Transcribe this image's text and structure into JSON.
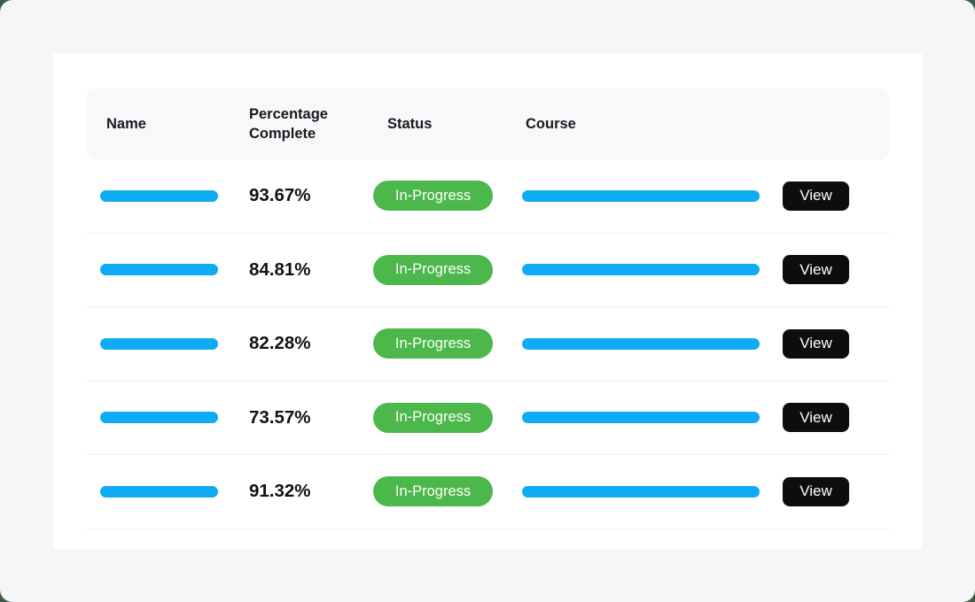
{
  "colors": {
    "backdrop": "#3E5B46",
    "page_bg": "#F5F6F8",
    "card_bg": "#FFFFFF",
    "header_bg": "#F7F8FA",
    "divider": "#EFF0F2",
    "bar_blue": "#0FABF5",
    "badge_green": "#4CB74B",
    "button_bg": "#0D0D0D",
    "text_dark": "#17191C"
  },
  "placeholders": {
    "name_cell": "redacted-blue-bar",
    "course_cell": "redacted-blue-bar"
  },
  "table": {
    "columns": [
      {
        "label": "Name"
      },
      {
        "label": "Percentage Complete"
      },
      {
        "label": "Status"
      },
      {
        "label": "Course"
      },
      {
        "label": ""
      }
    ],
    "rows": [
      {
        "percentage": "93.67%",
        "status": "In-Progress",
        "action": "View"
      },
      {
        "percentage": "84.81%",
        "status": "In-Progress",
        "action": "View"
      },
      {
        "percentage": "82.28%",
        "status": "In-Progress",
        "action": "View"
      },
      {
        "percentage": "73.57%",
        "status": "In-Progress",
        "action": "View"
      },
      {
        "percentage": "91.32%",
        "status": "In-Progress",
        "action": "View"
      }
    ]
  }
}
